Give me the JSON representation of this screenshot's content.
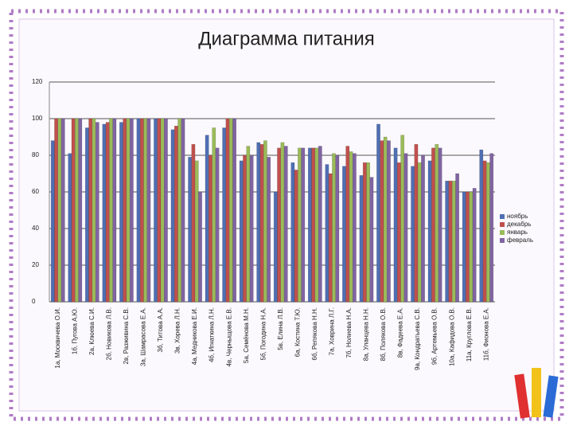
{
  "chart_data": {
    "type": "bar",
    "title": "Диаграмма питания",
    "categories": [
      "1а, Москвичева О.И.",
      "1б, Пугова А.Ю.",
      "2а, Клюева С.И.",
      "2б, Новикова Л.В.",
      "2в, Разживина С.В.",
      "3а, Шамрасова Е.А.",
      "3б, Титова А.А.",
      "3в, Хорева Л.Н.",
      "4а, Медникова Е.И.",
      "4б, Игнаткина Л.Н.",
      "4в, Черныщова Е.В.",
      "5а, Семёнова М.Н.",
      "5б, Погодина Н.А.",
      "5в, Елина Л.В.",
      "6а, Костина Т.Ю.",
      "6б, Репякова Н.Н.",
      "7а, Ховрина Л.Г.",
      "7б, Нолиева Н.А.",
      "8а, Уланцева Н.Н.",
      "8б, Полякова О.В.",
      "8в, Фадеева Е.А.",
      "9а, Кондратьева С.В.",
      "9б, Артемьева О.В.",
      "10а, Кафидова О.В.",
      "11а, Круглова Е.В.",
      "11б, Фионова Е.А."
    ],
    "series": [
      {
        "name": "ноябрь",
        "color": "#4f6fb3",
        "values": [
          88,
          81,
          95,
          97,
          98,
          100,
          100,
          94,
          79,
          91,
          95,
          77,
          87,
          60,
          76,
          84,
          75,
          74,
          69,
          97,
          84,
          74,
          77,
          66,
          60,
          83
        ]
      },
      {
        "name": "декабрь",
        "color": "#c0504d",
        "values": [
          100,
          100,
          100,
          98,
          100,
          100,
          100,
          96,
          86,
          80,
          100,
          80,
          86,
          84,
          72,
          84,
          70,
          85,
          76,
          88,
          76,
          86,
          84,
          66,
          60,
          77
        ]
      },
      {
        "name": "январь",
        "color": "#9bbb59",
        "values": [
          100,
          100,
          100,
          100,
          100,
          100,
          100,
          100,
          77,
          95,
          100,
          85,
          88,
          87,
          84,
          84,
          81,
          82,
          76,
          90,
          91,
          76,
          86,
          66,
          60,
          76
        ]
      },
      {
        "name": "февраль",
        "color": "#8064a2",
        "values": [
          100,
          100,
          98,
          100,
          100,
          100,
          100,
          100,
          60,
          84,
          100,
          80,
          79,
          85,
          84,
          85,
          80,
          81,
          68,
          88,
          81,
          80,
          84,
          70,
          62,
          81
        ]
      }
    ],
    "ylim": [
      0,
      120
    ],
    "yticks": [
      0,
      20,
      40,
      60,
      80,
      100,
      120
    ],
    "grid": true,
    "legend": "right"
  }
}
